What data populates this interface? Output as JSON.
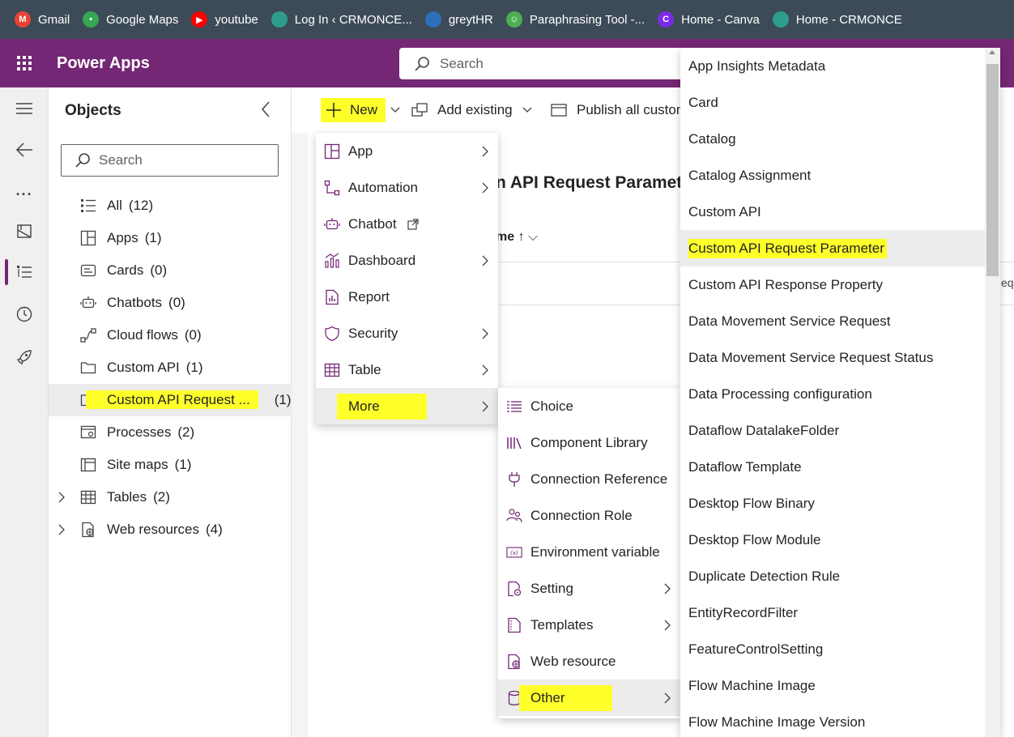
{
  "bookmarks": [
    {
      "label": "Gmail",
      "icon": "gmail-icon",
      "color": "#ea4335",
      "glyph": "M"
    },
    {
      "label": "Google Maps",
      "icon": "maps-pin-icon",
      "color": "#34a853",
      "glyph": "•"
    },
    {
      "label": "youtube",
      "icon": "youtube-icon",
      "color": "#ff0000",
      "glyph": "▶"
    },
    {
      "label": "Log In ‹ CRMONCE...",
      "icon": "globe-icon",
      "color": "#2e9c8c",
      "glyph": ""
    },
    {
      "label": "greytHR",
      "icon": "greythr-icon",
      "color": "#2d6fb8",
      "glyph": ""
    },
    {
      "label": "Paraphrasing Tool -...",
      "icon": "robot-icon",
      "color": "#4caf50",
      "glyph": "☺"
    },
    {
      "label": "Home - Canva",
      "icon": "canva-icon",
      "color": "#7d2ae8",
      "glyph": "C"
    },
    {
      "label": "Home - CRMONCE",
      "icon": "globe-icon",
      "color": "#2e9c8c",
      "glyph": ""
    }
  ],
  "header": {
    "app_name": "Power Apps",
    "search_placeholder": "Search",
    "brand_color": "#742774"
  },
  "objects": {
    "title": "Objects",
    "search_placeholder": "Search",
    "items": [
      {
        "label": "All",
        "count": "(12)",
        "icon": "list-icon"
      },
      {
        "label": "Apps",
        "count": "(1)",
        "icon": "app-grid-icon"
      },
      {
        "label": "Cards",
        "count": "(0)",
        "icon": "card-icon"
      },
      {
        "label": "Chatbots",
        "count": "(0)",
        "icon": "chatbot-icon"
      },
      {
        "label": "Cloud flows",
        "count": "(0)",
        "icon": "flow-icon"
      },
      {
        "label": "Custom API",
        "count": "(1)",
        "icon": "folder-icon"
      },
      {
        "label": "Custom API Request ...",
        "count": "(1)",
        "icon": "folder-icon",
        "selected": true
      },
      {
        "label": "Processes",
        "count": "(2)",
        "icon": "process-icon"
      },
      {
        "label": "Site maps",
        "count": "(1)",
        "icon": "sitemap-icon"
      },
      {
        "label": "Tables",
        "count": "(2)",
        "icon": "table-icon",
        "expandable": true
      },
      {
        "label": "Web resources",
        "count": "(4)",
        "icon": "web-resource-icon",
        "expandable": true
      }
    ]
  },
  "commandbar": {
    "new_label": "New",
    "add_existing_label": "Add existing",
    "publish_label": "Publish all custom"
  },
  "background_content": {
    "title_fragment": "n API Request Paramet",
    "column_fragment": "me ↑",
    "cell_fragment": "eq"
  },
  "new_menu": [
    {
      "label": "App",
      "icon": "app-icon",
      "submenu": true
    },
    {
      "label": "Automation",
      "icon": "automation-icon",
      "submenu": true
    },
    {
      "label": "Chatbot",
      "icon": "chatbot-icon",
      "external": true
    },
    {
      "label": "Dashboard",
      "icon": "dashboard-icon",
      "submenu": true
    },
    {
      "label": "Report",
      "icon": "report-icon"
    },
    {
      "label": "Security",
      "icon": "shield-icon",
      "submenu": true
    },
    {
      "label": "Table",
      "icon": "table-icon",
      "submenu": true
    },
    {
      "label": "More",
      "icon": "",
      "submenu": true,
      "active": true
    }
  ],
  "more_menu": [
    {
      "label": "Choice",
      "icon": "choice-icon"
    },
    {
      "label": "Component Library",
      "icon": "library-icon"
    },
    {
      "label": "Connection Reference",
      "icon": "plug-icon"
    },
    {
      "label": "Connection Role",
      "icon": "people-icon"
    },
    {
      "label": "Environment variable",
      "icon": "variable-icon"
    },
    {
      "label": "Setting",
      "icon": "setting-icon",
      "submenu": true
    },
    {
      "label": "Templates",
      "icon": "template-icon",
      "submenu": true
    },
    {
      "label": "Web resource",
      "icon": "web-resource-icon"
    },
    {
      "label": "Other",
      "icon": "database-icon",
      "submenu": true,
      "active": true
    }
  ],
  "other_menu": [
    {
      "label": "App Insights Metadata"
    },
    {
      "label": "Card"
    },
    {
      "label": "Catalog"
    },
    {
      "label": "Catalog Assignment"
    },
    {
      "label": "Custom API"
    },
    {
      "label": "Custom API Request Parameter",
      "active": true
    },
    {
      "label": "Custom API Response Property"
    },
    {
      "label": "Data Movement Service Request"
    },
    {
      "label": "Data Movement Service Request Status"
    },
    {
      "label": "Data Processing configuration"
    },
    {
      "label": "Dataflow DatalakeFolder"
    },
    {
      "label": "Dataflow Template"
    },
    {
      "label": "Desktop Flow Binary"
    },
    {
      "label": "Desktop Flow Module"
    },
    {
      "label": "Duplicate Detection Rule"
    },
    {
      "label": "EntityRecordFilter"
    },
    {
      "label": "FeatureControlSetting"
    },
    {
      "label": "Flow Machine Image"
    },
    {
      "label": "Flow Machine Image Version"
    }
  ],
  "highlight_color": "#ffff2a"
}
